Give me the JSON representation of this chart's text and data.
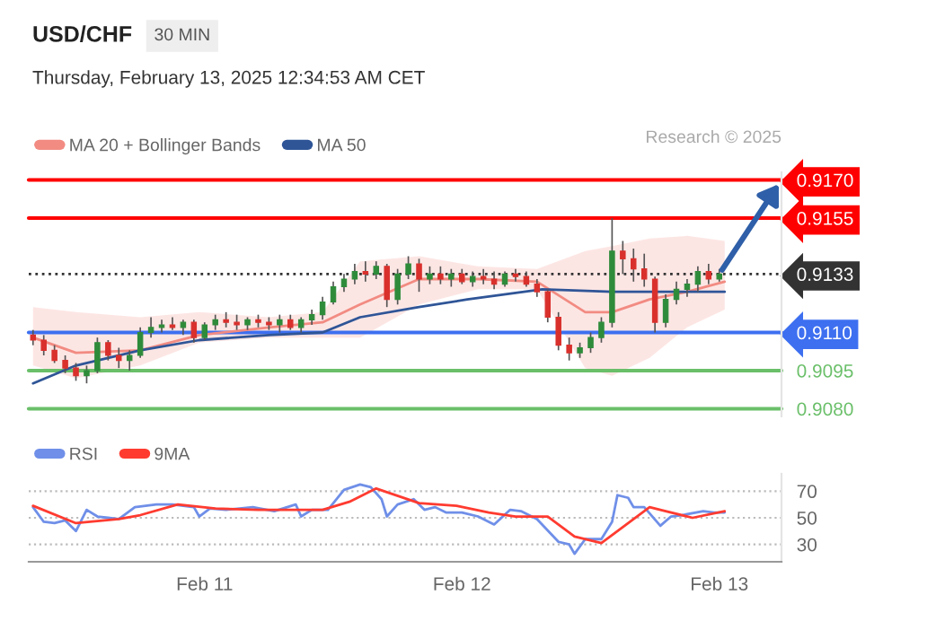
{
  "chart_data": [
    {
      "type": "candlestick",
      "title": "USD/CHF",
      "subtitle": "Thursday, February 13, 2025 12:34:53 AM CET",
      "annotations": [
        "30 MIN",
        "Research © 2025"
      ],
      "x": [
        "2025-02-10T08:00",
        "2025-02-10T09:00",
        "2025-02-10T10:00",
        "2025-02-10T11:00",
        "2025-02-10T12:00",
        "2025-02-10T13:00",
        "2025-02-10T14:00",
        "2025-02-10T15:00",
        "2025-02-10T16:00",
        "2025-02-10T17:00",
        "2025-02-10T18:00",
        "2025-02-10T19:00",
        "2025-02-10T20:00",
        "2025-02-10T21:00",
        "2025-02-10T22:00",
        "2025-02-10T23:00",
        "2025-02-11T00:00",
        "2025-02-11T01:00",
        "2025-02-11T02:00",
        "2025-02-11T03:00",
        "2025-02-11T04:00",
        "2025-02-11T05:00",
        "2025-02-11T06:00",
        "2025-02-11T07:00",
        "2025-02-11T08:00",
        "2025-02-11T09:00",
        "2025-02-11T10:00",
        "2025-02-11T11:00",
        "2025-02-11T12:00",
        "2025-02-11T13:00",
        "2025-02-11T14:00",
        "2025-02-11T15:00",
        "2025-02-11T16:00",
        "2025-02-11T17:00",
        "2025-02-11T18:00",
        "2025-02-11T19:00",
        "2025-02-11T20:00",
        "2025-02-11T21:00",
        "2025-02-11T22:00",
        "2025-02-11T23:00",
        "2025-02-12T00:00",
        "2025-02-12T01:00",
        "2025-02-12T02:00",
        "2025-02-12T03:00",
        "2025-02-12T04:00",
        "2025-02-12T05:00",
        "2025-02-12T06:00",
        "2025-02-12T07:00",
        "2025-02-12T08:00",
        "2025-02-12T09:00",
        "2025-02-12T10:00",
        "2025-02-12T11:00",
        "2025-02-12T12:00",
        "2025-02-12T13:00",
        "2025-02-12T14:00",
        "2025-02-12T15:00",
        "2025-02-12T16:00",
        "2025-02-12T17:00",
        "2025-02-12T18:00",
        "2025-02-12T19:00",
        "2025-02-12T20:00",
        "2025-02-12T21:00",
        "2025-02-12T22:00",
        "2025-02-12T23:00",
        "2025-02-13T00:00"
      ],
      "ohlc": [
        [
          0.9109,
          0.9111,
          0.9105,
          0.9107
        ],
        [
          0.9107,
          0.9109,
          0.9101,
          0.9103
        ],
        [
          0.9103,
          0.9105,
          0.9098,
          0.9099
        ],
        [
          0.9099,
          0.9101,
          0.9094,
          0.9096
        ],
        [
          0.9096,
          0.9098,
          0.9091,
          0.9093
        ],
        [
          0.9093,
          0.9097,
          0.909,
          0.9095
        ],
        [
          0.9095,
          0.9108,
          0.9094,
          0.9106
        ],
        [
          0.9106,
          0.9107,
          0.9099,
          0.9101
        ],
        [
          0.9101,
          0.9104,
          0.9096,
          0.9099
        ],
        [
          0.9099,
          0.9103,
          0.9095,
          0.9101
        ],
        [
          0.9101,
          0.9112,
          0.91,
          0.911
        ],
        [
          0.911,
          0.9116,
          0.9108,
          0.9112
        ],
        [
          0.9112,
          0.9115,
          0.911,
          0.9113
        ],
        [
          0.9113,
          0.9116,
          0.9111,
          0.9112
        ],
        [
          0.9112,
          0.9115,
          0.9109,
          0.9114
        ],
        [
          0.9114,
          0.9115,
          0.9106,
          0.9108
        ],
        [
          0.9108,
          0.9114,
          0.9107,
          0.9113
        ],
        [
          0.9113,
          0.9117,
          0.9111,
          0.9115
        ],
        [
          0.9115,
          0.9118,
          0.9112,
          0.9114
        ],
        [
          0.9114,
          0.9117,
          0.9111,
          0.9113
        ],
        [
          0.9113,
          0.9116,
          0.9111,
          0.9115
        ],
        [
          0.9115,
          0.9117,
          0.9112,
          0.9114
        ],
        [
          0.9114,
          0.9116,
          0.9111,
          0.9113
        ],
        [
          0.9113,
          0.9117,
          0.911,
          0.9115
        ],
        [
          0.9115,
          0.9117,
          0.9111,
          0.9112
        ],
        [
          0.9112,
          0.9116,
          0.911,
          0.9115
        ],
        [
          0.9115,
          0.9119,
          0.9113,
          0.9117
        ],
        [
          0.9117,
          0.9124,
          0.9115,
          0.9122
        ],
        [
          0.9122,
          0.913,
          0.9121,
          0.9128
        ],
        [
          0.9128,
          0.9133,
          0.9126,
          0.9131
        ],
        [
          0.9131,
          0.9137,
          0.9129,
          0.9134
        ],
        [
          0.9134,
          0.9138,
          0.913,
          0.9133
        ],
        [
          0.9133,
          0.9138,
          0.9131,
          0.9136
        ],
        [
          0.9136,
          0.9137,
          0.912,
          0.9123
        ],
        [
          0.9123,
          0.9135,
          0.9121,
          0.9133
        ],
        [
          0.9133,
          0.914,
          0.9131,
          0.9137
        ],
        [
          0.9137,
          0.9139,
          0.9126,
          0.9131
        ],
        [
          0.9131,
          0.9136,
          0.9129,
          0.9133
        ],
        [
          0.9133,
          0.9136,
          0.9129,
          0.9131
        ],
        [
          0.9131,
          0.9135,
          0.9128,
          0.9133
        ],
        [
          0.9133,
          0.9135,
          0.9129,
          0.913
        ],
        [
          0.913,
          0.9134,
          0.9128,
          0.9132
        ],
        [
          0.9132,
          0.9135,
          0.9129,
          0.9131
        ],
        [
          0.9131,
          0.9134,
          0.9127,
          0.9129
        ],
        [
          0.9129,
          0.9134,
          0.9128,
          0.9133
        ],
        [
          0.9133,
          0.9135,
          0.913,
          0.9132
        ],
        [
          0.9132,
          0.9134,
          0.9128,
          0.9129
        ],
        [
          0.9129,
          0.9131,
          0.9124,
          0.9126
        ],
        [
          0.9126,
          0.9127,
          0.9114,
          0.9116
        ],
        [
          0.9116,
          0.9118,
          0.9103,
          0.9105
        ],
        [
          0.9105,
          0.9108,
          0.9099,
          0.9102
        ],
        [
          0.9102,
          0.9106,
          0.91,
          0.9104
        ],
        [
          0.9104,
          0.911,
          0.9102,
          0.9108
        ],
        [
          0.9108,
          0.9116,
          0.9106,
          0.9114
        ],
        [
          0.9114,
          0.9155,
          0.9112,
          0.9142
        ],
        [
          0.9142,
          0.9146,
          0.9133,
          0.9139
        ],
        [
          0.9139,
          0.9143,
          0.913,
          0.9135
        ],
        [
          0.9135,
          0.9141,
          0.9128,
          0.9131
        ],
        [
          0.9131,
          0.9132,
          0.911,
          0.9114
        ],
        [
          0.9114,
          0.9125,
          0.9112,
          0.9123
        ],
        [
          0.9123,
          0.913,
          0.9121,
          0.9127
        ],
        [
          0.9127,
          0.9131,
          0.9124,
          0.9129
        ],
        [
          0.9129,
          0.9136,
          0.9126,
          0.9134
        ],
        [
          0.9134,
          0.9137,
          0.9129,
          0.9131
        ],
        [
          0.9131,
          0.9135,
          0.913,
          0.9133
        ]
      ],
      "series": [
        {
          "name": "MA 20 + Bollinger Bands",
          "type": "line",
          "color": "#f28b82",
          "x": [
            "2025-02-10T08:00",
            "2025-02-10T12:00",
            "2025-02-10T18:00",
            "2025-02-10T23:30",
            "2025-02-11T06:00",
            "2025-02-11T11:00",
            "2025-02-11T14:30",
            "2025-02-11T20:00",
            "2025-02-12T01:30",
            "2025-02-12T07:00",
            "2025-02-12T11:30",
            "2025-02-12T14:00",
            "2025-02-12T17:30",
            "2025-02-12T21:00",
            "2025-02-13T00:30"
          ],
          "values": [
            0.9108,
            0.9102,
            0.9103,
            0.9109,
            0.9112,
            0.9114,
            0.9121,
            0.9131,
            0.9131,
            0.913,
            0.9118,
            0.9118,
            0.9123,
            0.9126,
            0.913
          ],
          "upper": [
            0.912,
            0.9118,
            0.9116,
            0.9118,
            0.9116,
            0.9118,
            0.9138,
            0.914,
            0.9136,
            0.9135,
            0.9142,
            0.9144,
            0.9147,
            0.9148,
            0.9146
          ],
          "lower": [
            0.9097,
            0.9092,
            0.9097,
            0.9106,
            0.9108,
            0.9108,
            0.9108,
            0.9121,
            0.9127,
            0.9127,
            0.9096,
            0.9093,
            0.91,
            0.9112,
            0.9119
          ]
        },
        {
          "name": "MA 50",
          "type": "line",
          "color": "#2f5597",
          "x": [
            "2025-02-10T08:00",
            "2025-02-10T12:00",
            "2025-02-10T18:00",
            "2025-02-10T23:30",
            "2025-02-11T06:00",
            "2025-02-11T11:00",
            "2025-02-11T14:30",
            "2025-02-11T20:00",
            "2025-02-12T00:30",
            "2025-02-12T07:30",
            "2025-02-12T14:00",
            "2025-02-13T00:30"
          ],
          "values": [
            0.909,
            0.9097,
            0.9103,
            0.9107,
            0.9109,
            0.911,
            0.9116,
            0.912,
            0.9123,
            0.9127,
            0.9126,
            0.9126
          ]
        }
      ],
      "ref_lines": [
        {
          "axis": "y",
          "value": 0.917,
          "color": "#ff0000"
        },
        {
          "axis": "y",
          "value": 0.9155,
          "color": "#ff0000"
        },
        {
          "axis": "y",
          "value": 0.9133,
          "color": "#333333",
          "line_style": "dotted"
        },
        {
          "axis": "y",
          "value": 0.911,
          "color": "#3d6ff0"
        },
        {
          "axis": "y",
          "value": 0.9095,
          "color": "#6abf69"
        },
        {
          "axis": "y",
          "value": 0.908,
          "color": "#6abf69"
        }
      ],
      "ylim": [
        0.9077,
        0.9173
      ],
      "yticks": [
        {
          "value": 0.917,
          "label": "0.9170"
        },
        {
          "value": 0.9155,
          "label": "0.9155"
        },
        {
          "value": 0.9133,
          "label": "0.9133"
        },
        {
          "value": 0.911,
          "label": "0.9110"
        },
        {
          "value": 0.9095,
          "label": "0.9095"
        },
        {
          "value": 0.908,
          "label": "0.9080"
        }
      ],
      "xlim": [
        "2025-02-10T07:36",
        "2025-02-13T05:48"
      ],
      "tick_labels": "y",
      "legend": "top left",
      "grid": false
    },
    {
      "type": "line",
      "series": [
        {
          "name": "RSI",
          "color": "#6f8fe8",
          "x": [
            "2025-02-10T08:00",
            "2025-02-10T09:00",
            "2025-02-10T10:00",
            "2025-02-10T11:00",
            "2025-02-10T12:00",
            "2025-02-10T13:00",
            "2025-02-10T14:00",
            "2025-02-10T15:00",
            "2025-02-10T16:00",
            "2025-02-10T17:30",
            "2025-02-10T19:30",
            "2025-02-10T21:00",
            "2025-02-10T23:00",
            "2025-02-10T23:30",
            "2025-02-11T00:30",
            "2025-02-11T02:00",
            "2025-02-11T04:30",
            "2025-02-11T06:30",
            "2025-02-11T08:30",
            "2025-02-11T09:00",
            "2025-02-11T10:00",
            "2025-02-11T11:30",
            "2025-02-11T13:00",
            "2025-02-11T14:30",
            "2025-02-11T15:30",
            "2025-02-11T16:30",
            "2025-02-11T17:00",
            "2025-02-11T18:00",
            "2025-02-11T19:30",
            "2025-02-11T20:30",
            "2025-02-11T21:30",
            "2025-02-11T22:30",
            "2025-02-12T00:00",
            "2025-02-12T01:30",
            "2025-02-12T03:00",
            "2025-02-12T04:30",
            "2025-02-12T05:30",
            "2025-02-12T07:00",
            "2025-02-12T09:00",
            "2025-02-12T10:00",
            "2025-02-12T10:30",
            "2025-02-12T11:30",
            "2025-02-12T13:00",
            "2025-02-12T14:00",
            "2025-02-12T14:30",
            "2025-02-12T15:30",
            "2025-02-12T16:00",
            "2025-02-12T17:00",
            "2025-02-12T18:30",
            "2025-02-12T19:30",
            "2025-02-12T20:30",
            "2025-02-12T22:30",
            "2025-02-12T23:30",
            "2025-02-13T00:30"
          ],
          "values": [
            58,
            47,
            46,
            48,
            40,
            56,
            51,
            50,
            49,
            58,
            60,
            60,
            58,
            51,
            57,
            56,
            58,
            55,
            60,
            51,
            56,
            56,
            71,
            75,
            73,
            64,
            51,
            60,
            64,
            56,
            58,
            54,
            54,
            51,
            45,
            56,
            55,
            49,
            32,
            30,
            23,
            34,
            34,
            47,
            67,
            65,
            58,
            58,
            44,
            51,
            52,
            55,
            54,
            54
          ]
        },
        {
          "name": "9MA",
          "color": "#ff3b30",
          "x": [
            "2025-02-10T08:00",
            "2025-02-10T12:00",
            "2025-02-10T16:00",
            "2025-02-10T18:00",
            "2025-02-10T21:30",
            "2025-02-11T01:00",
            "2025-02-11T05:00",
            "2025-02-11T11:00",
            "2025-02-11T13:30",
            "2025-02-11T16:00",
            "2025-02-11T20:00",
            "2025-02-11T23:30",
            "2025-02-12T02:30",
            "2025-02-12T05:00",
            "2025-02-12T08:00",
            "2025-02-12T10:30",
            "2025-02-12T13:00",
            "2025-02-12T15:00",
            "2025-02-12T17:30",
            "2025-02-12T19:00",
            "2025-02-12T21:30",
            "2025-02-13T00:30"
          ],
          "values": [
            59,
            46,
            49,
            52,
            60,
            57,
            56,
            56,
            62,
            72,
            61,
            59,
            54,
            51,
            51,
            36,
            31,
            43,
            58,
            55,
            50,
            55
          ]
        }
      ],
      "xlim": [
        "2025-02-10T07:36",
        "2025-02-13T05:48"
      ],
      "xticks": [
        {
          "value": "2025-02-11",
          "label": "Feb 11"
        },
        {
          "value": "2025-02-12",
          "label": "Feb 12"
        },
        {
          "value": "2025-02-13",
          "label": "Feb 13"
        }
      ],
      "ylim": [
        17,
        83
      ],
      "yticks": [
        30,
        50,
        70
      ],
      "grid": "y",
      "legend": "top left"
    }
  ]
}
